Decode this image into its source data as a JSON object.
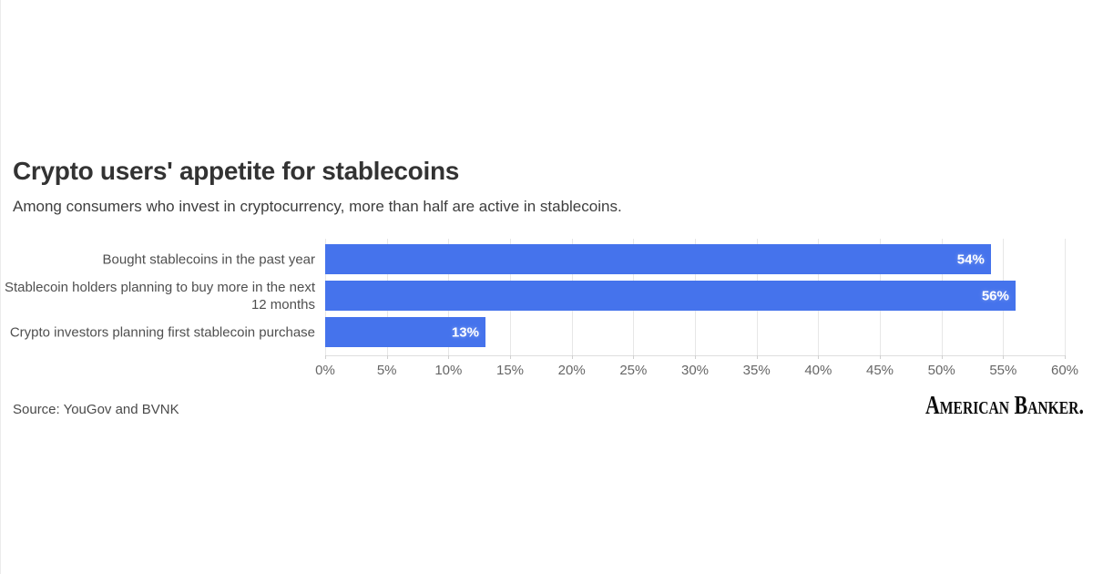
{
  "header": {
    "title": "Crypto users' appetite for stablecoins",
    "subtitle": "Among consumers who invest in cryptocurrency, more than half are active in stablecoins."
  },
  "chart_data": {
    "type": "bar",
    "orientation": "horizontal",
    "title": "Crypto users' appetite for stablecoins",
    "subtitle": "Among consumers who invest in cryptocurrency, more than half are active in stablecoins.",
    "categories": [
      "Bought stablecoins in the past year",
      "Stablecoin holders planning to buy more in the next 12 months",
      "Crypto investors planning first stablecoin purchase"
    ],
    "values": [
      54,
      56,
      13
    ],
    "value_labels": [
      "54%",
      "56%",
      "13%"
    ],
    "xlim": [
      0,
      60
    ],
    "x_ticks": [
      0,
      5,
      10,
      15,
      20,
      25,
      30,
      35,
      40,
      45,
      50,
      55,
      60
    ],
    "x_tick_labels": [
      "0%",
      "5%",
      "10%",
      "15%",
      "20%",
      "25%",
      "30%",
      "35%",
      "40%",
      "45%",
      "50%",
      "55%",
      "60%"
    ],
    "xlabel": "",
    "ylabel": "",
    "grid": true,
    "legend": false,
    "bar_color": "#4573ec",
    "value_label_color": "#ffffff",
    "gridline_color": "#e7e7e7"
  },
  "footer": {
    "source": "Source: YouGov and BVNK",
    "logo_text": "American Banker."
  }
}
